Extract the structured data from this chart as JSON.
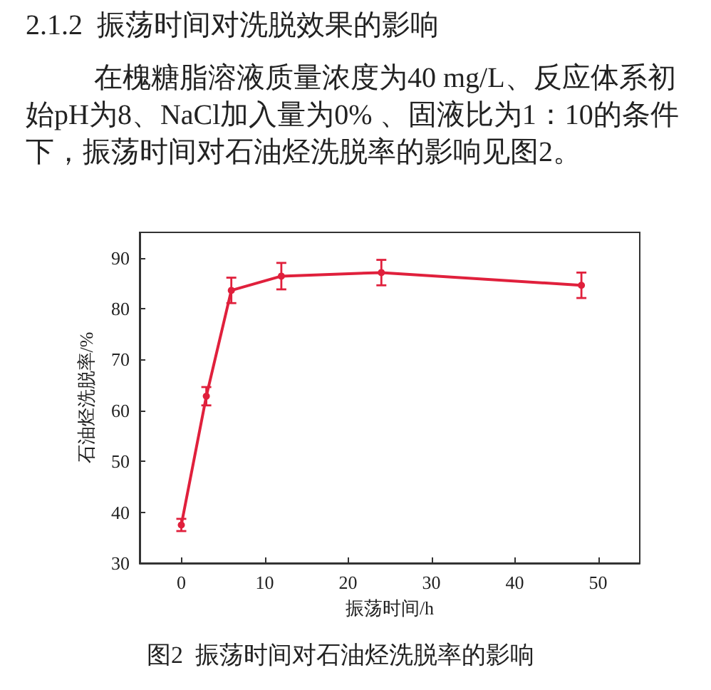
{
  "chart_data": {
    "type": "line",
    "title": "2.1.2  振荡时间对洗脱效果的影响",
    "subtitle": "在槐糖脂溶液质量浓度为40 mg/L、反应体系初始pH为8、NaCl加入量为0% 、固液比为1：10的条件下，振荡时间对石油烃洗脱率的影响见图2。",
    "xlabel": "振荡时间/h",
    "ylabel": "石油烃洗脱率/%",
    "annotations": [
      "图2  振荡时间对石油烃洗脱率的影响"
    ],
    "x": [
      0,
      3,
      6,
      12,
      24,
      48
    ],
    "values": [
      37.5,
      62.8,
      83.6,
      86.4,
      87.1,
      84.6
    ],
    "errors": [
      1.2,
      1.8,
      2.5,
      2.6,
      2.5,
      2.5
    ],
    "color": "#e0203c",
    "xlim": [
      -5,
      55
    ],
    "xticks": [
      0,
      10,
      20,
      30,
      40,
      50
    ],
    "ylim": [
      30,
      95
    ],
    "yticks": [
      30,
      40,
      50,
      60,
      70,
      80,
      90
    ],
    "marker": "circle",
    "line_style": "solid"
  }
}
